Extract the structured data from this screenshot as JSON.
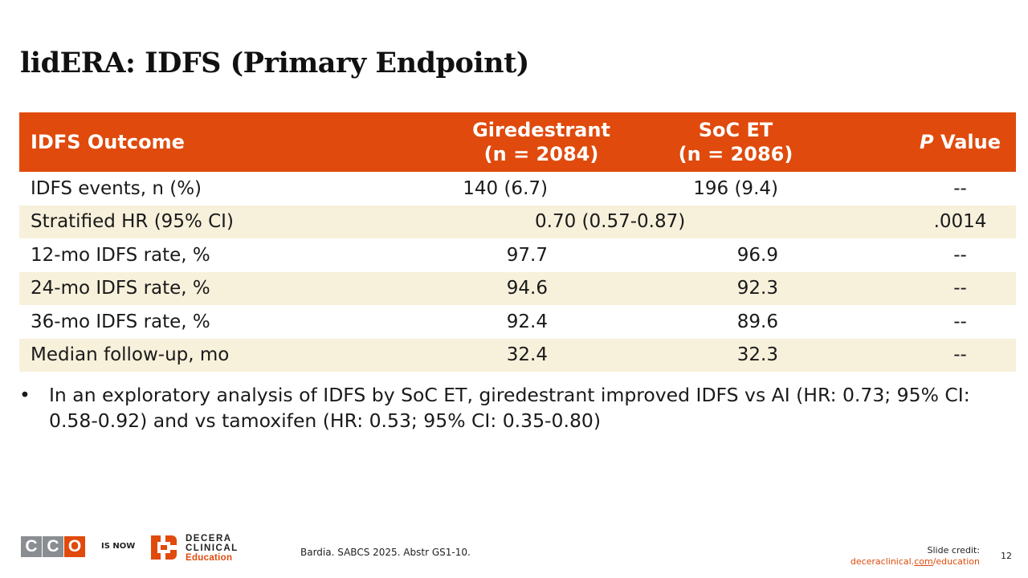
{
  "slide": {
    "title": "lidERA: IDFS (Primary Endpoint)",
    "page_number": "12"
  },
  "table": {
    "headers": {
      "outcome": "IDFS Outcome",
      "arm1_name": "Giredestrant",
      "arm1_n": "(n = 2084)",
      "arm2_name": "SoC ET",
      "arm2_n": "(n = 2086)",
      "p_italic": "P",
      "p_rest": " Value"
    },
    "rows": [
      {
        "label": "IDFS events, n (%)",
        "arm1": "140 (6.7)",
        "arm2": "196 (9.4)",
        "p": "--"
      },
      {
        "label": "Stratified HR (95% CI)",
        "combined": "0.70 (0.57-0.87)",
        "p": ".0014"
      },
      {
        "label": "12-mo IDFS rate, %",
        "arm1": "97.7",
        "arm2": "96.9",
        "p": "--"
      },
      {
        "label": "24-mo IDFS rate, %",
        "arm1": "94.6",
        "arm2": "92.3",
        "p": "--"
      },
      {
        "label": "36-mo IDFS rate, %",
        "arm1": "92.4",
        "arm2": "89.6",
        "p": "--"
      },
      {
        "label": "Median follow-up, mo",
        "arm1": "32.4",
        "arm2": "32.3",
        "p": "--"
      }
    ]
  },
  "bullet": {
    "marker": "•",
    "text": "In an exploratory analysis of IDFS by SoC ET, giredestrant improved IDFS vs AI (HR: 0.73; 95% CI: 0.58-0.92) and vs tamoxifen (HR: 0.53; 95% CI: 0.35-0.80)"
  },
  "footer": {
    "cco_letters": [
      "C",
      "C",
      "O"
    ],
    "cco_colors": [
      "#8a8d91",
      "#8a8d91",
      "#e04a0c"
    ],
    "is_now": "IS NOW",
    "decera_line1": "DECERA",
    "decera_line2": "CLINICAL",
    "decera_line3": "Education",
    "citation": "Bardia. SABCS 2025. Abstr GS1-10.",
    "credit_label": "Slide credit:",
    "credit_link_pre": "deceraclinical.",
    "credit_link_mid": "com",
    "credit_link_post": "/education"
  },
  "colors": {
    "accent": "#e04a0c",
    "band": "#f7f0db"
  }
}
